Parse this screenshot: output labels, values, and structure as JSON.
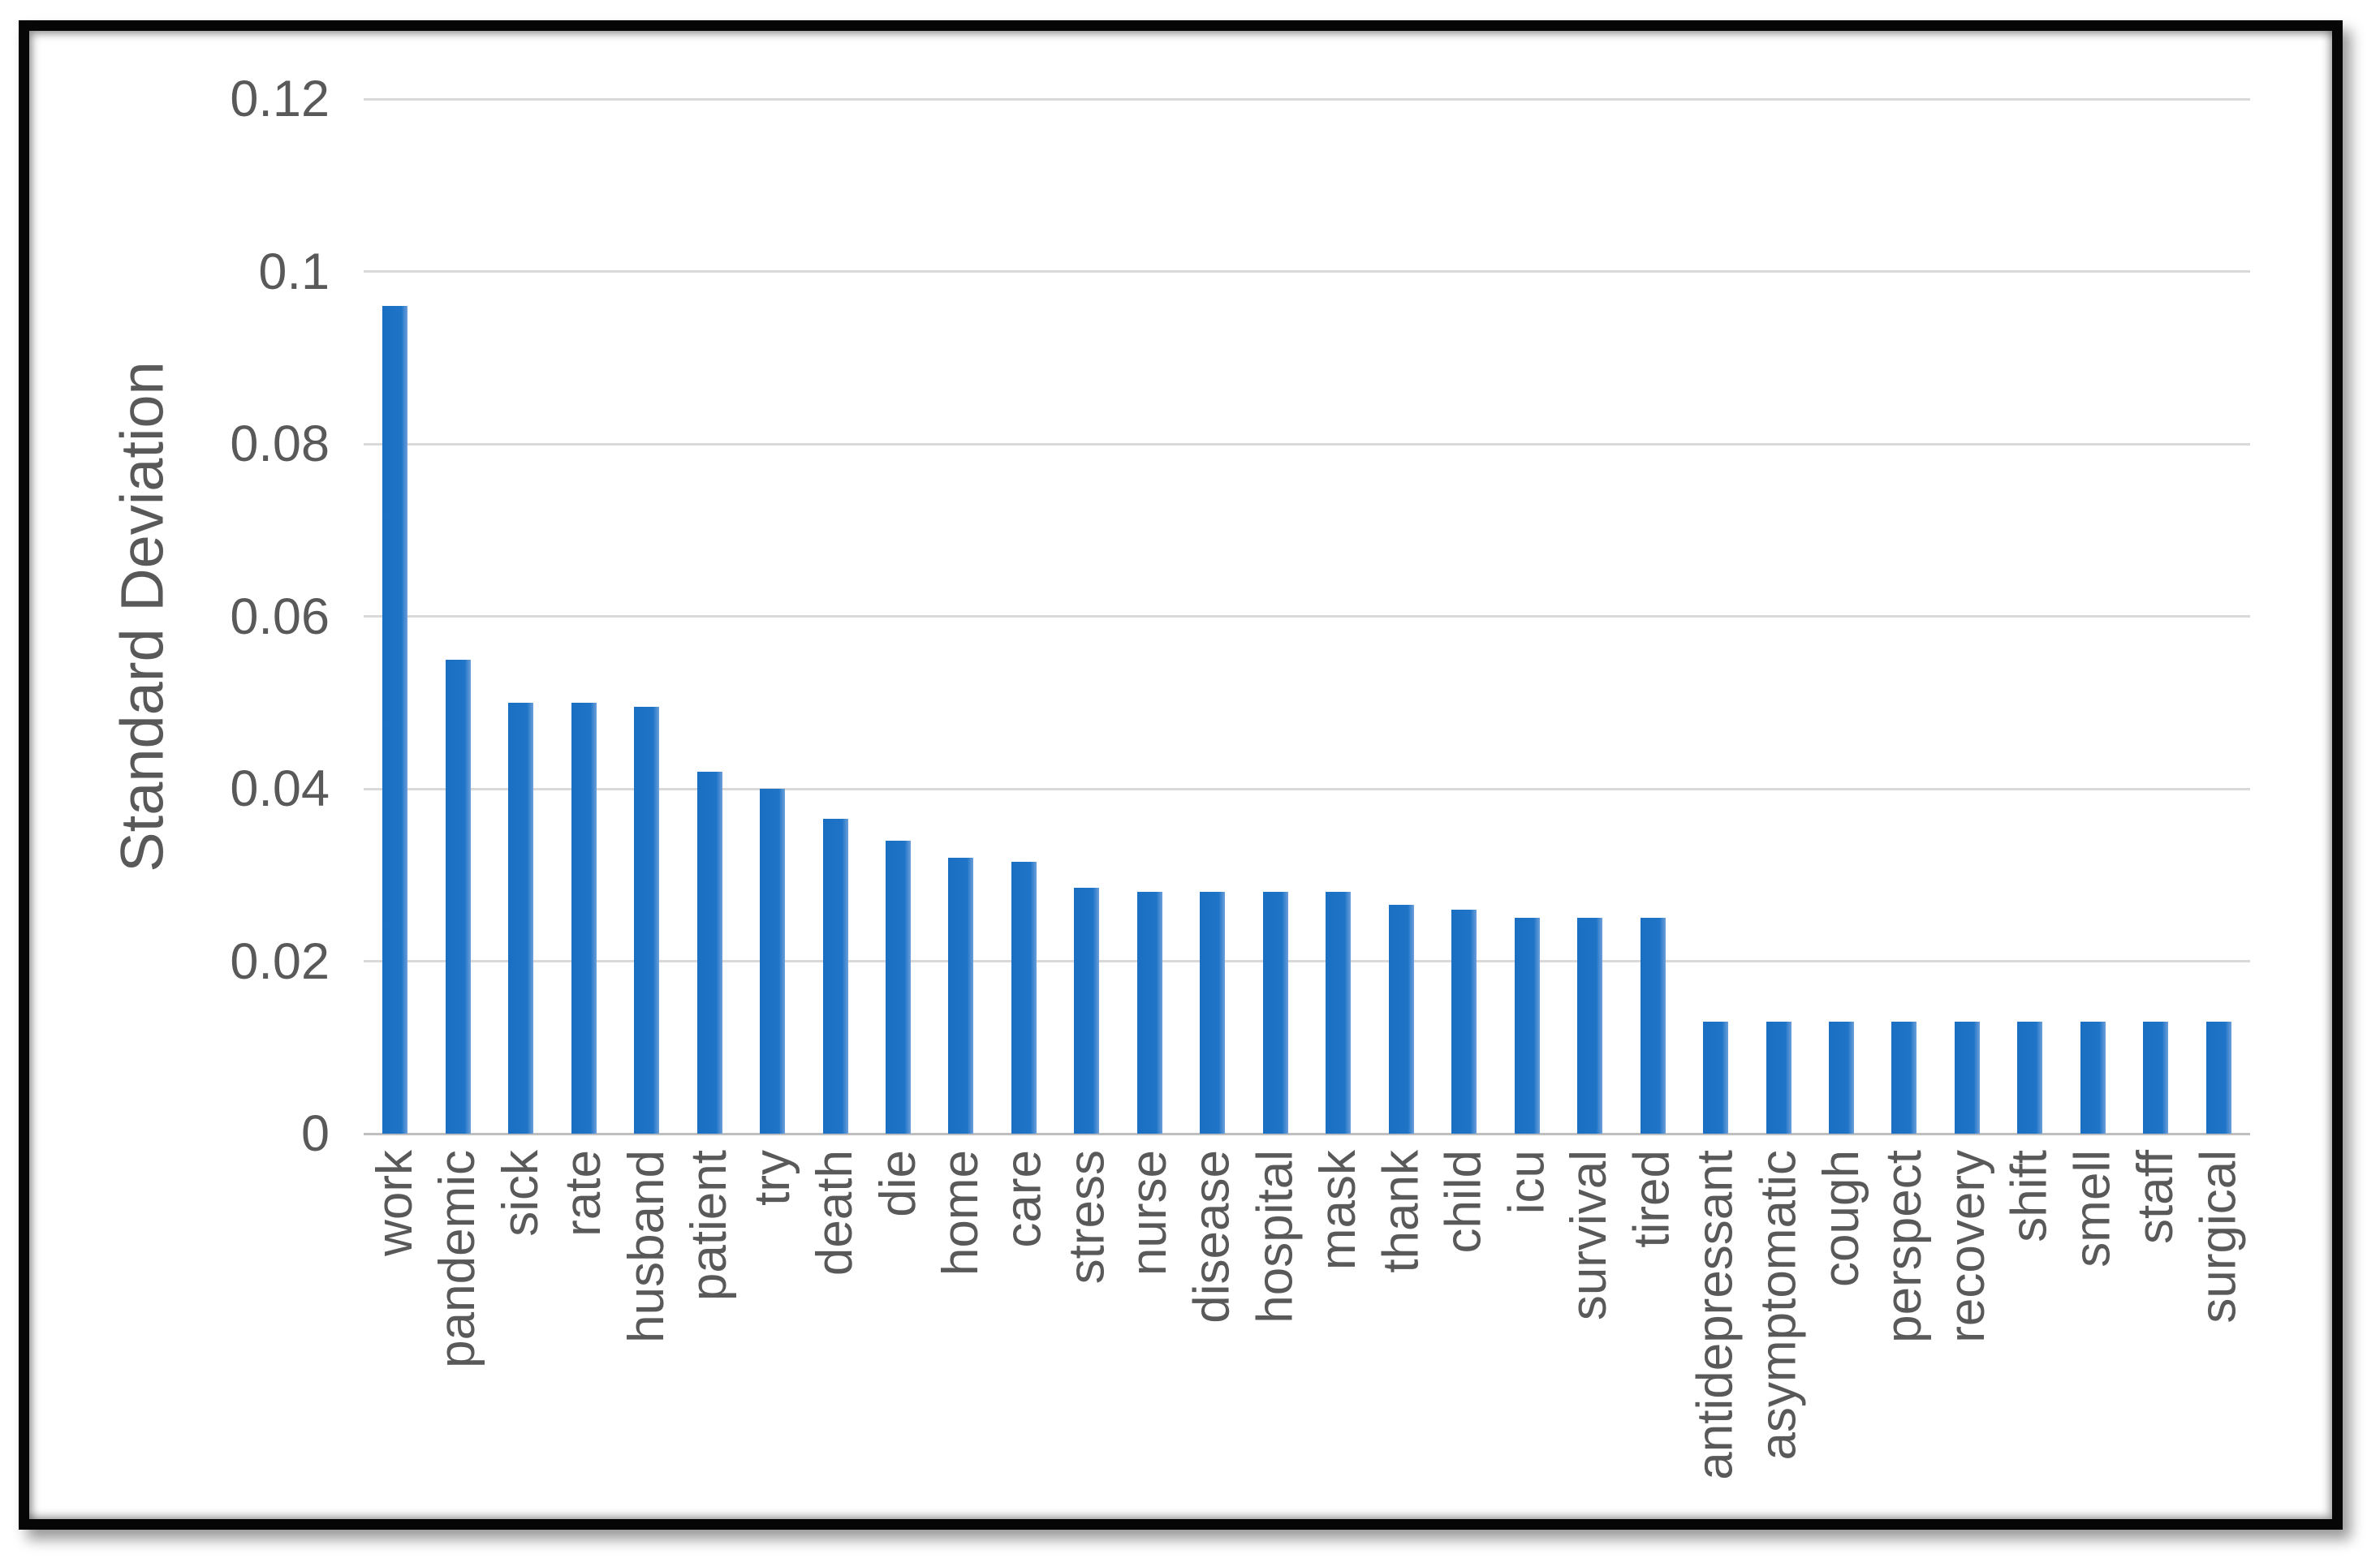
{
  "figure": {
    "frame_color": "#060606",
    "background": "#ffffff",
    "text_color": "#595959",
    "gridline_color": "#d9d9d9"
  },
  "chart_data": {
    "type": "bar",
    "title": "",
    "xlabel": "",
    "ylabel": "Standard Deviation",
    "ylim": [
      0,
      0.12
    ],
    "grid": true,
    "legend": "none",
    "bar_color": "#1f74c7",
    "ytick_values": [
      0,
      0.02,
      0.04,
      0.06,
      0.08,
      0.1,
      0.12
    ],
    "ytick_labels": [
      "0",
      "0.02",
      "0.04",
      "0.06",
      "0.08",
      "0.1",
      "0.12"
    ],
    "categories": [
      "work",
      "pandemic",
      "sick",
      "rate",
      "husband",
      "patient",
      "try",
      "death",
      "die",
      "home",
      "care",
      "stress",
      "nurse",
      "disease",
      "hospital",
      "mask",
      "thank",
      "child",
      "icu",
      "survival",
      "tired",
      "antidepressant",
      "asymptomatic",
      "cough",
      "perspect",
      "recovery",
      "shift",
      "smell",
      "staff",
      "surgical"
    ],
    "values": [
      0.096,
      0.055,
      0.05,
      0.05,
      0.0495,
      0.042,
      0.04,
      0.0365,
      0.034,
      0.032,
      0.0315,
      0.0285,
      0.028,
      0.028,
      0.028,
      0.028,
      0.0265,
      0.026,
      0.025,
      0.025,
      0.025,
      0.013,
      0.013,
      0.013,
      0.013,
      0.013,
      0.013,
      0.013,
      0.013,
      0.013
    ]
  }
}
